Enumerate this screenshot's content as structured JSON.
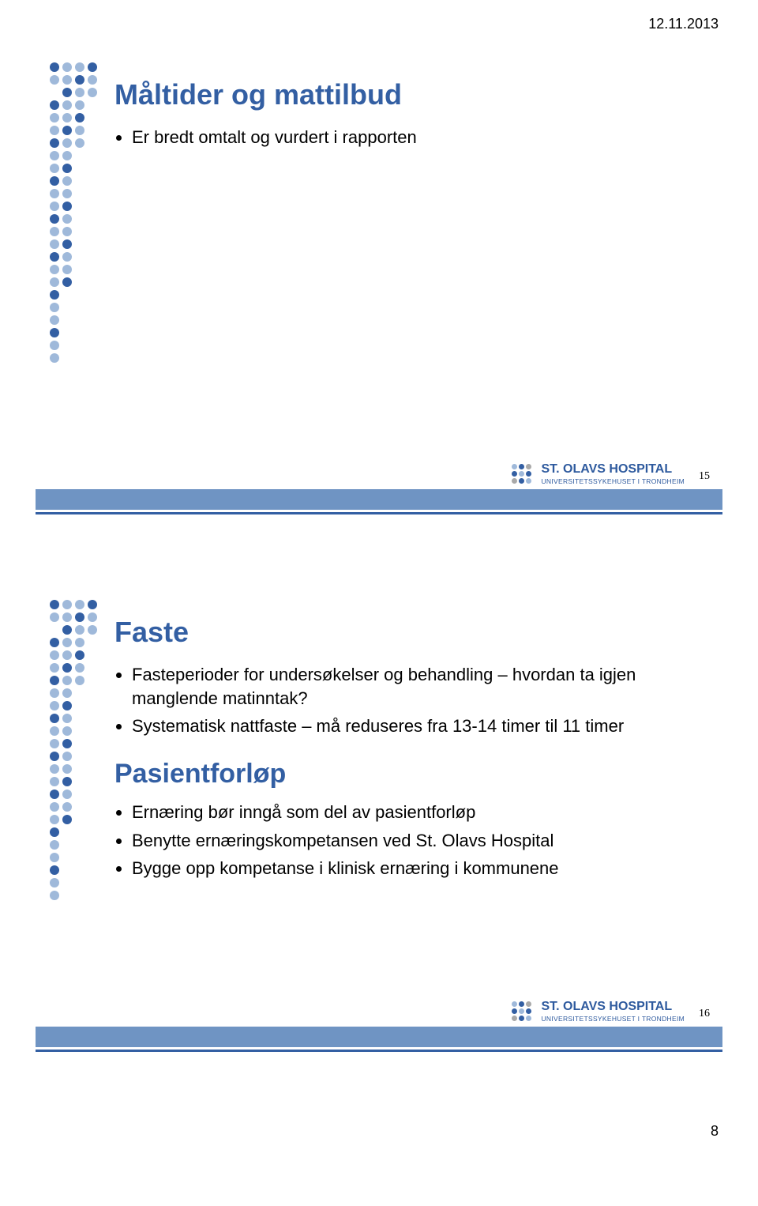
{
  "colors": {
    "accent_blue": "#335fa3",
    "light_blue_dot": "#9fb9da",
    "dark_blue_dot": "#335fa3",
    "grey_dot": "#a9a9a9",
    "footer_bar": "#6f94c3",
    "footer_line": "#335fa3",
    "logo_text": "#2e5a9e"
  },
  "header": {
    "date": "12.11.2013"
  },
  "slide1": {
    "title": "Måltider og mattilbud",
    "bullets": [
      "Er bredt omtalt og vurdert i rapporten"
    ],
    "logo": {
      "line1": "ST. OLAVS HOSPITAL",
      "line2": "UNIVERSITETSSYKEHUSET I TRONDHEIM"
    },
    "number": "15"
  },
  "slide2": {
    "title": "Faste",
    "bullets_a": [
      "Fasteperioder for undersøkelser og behandling – hvordan ta igjen manglende matinntak?",
      "Systematisk nattfaste – må reduseres fra 13-14 timer til 11 timer"
    ],
    "subheading": "Pasientforløp",
    "bullets_b": [
      "Ernæring bør inngå som del av pasientforløp",
      "Benytte ernæringskompetansen ved St. Olavs Hospital",
      "Bygge opp kompetanse i klinisk ernæring i kommunene"
    ],
    "logo": {
      "line1": "ST. OLAVS HOSPITAL",
      "line2": "UNIVERSITETSSYKEHUSET I TRONDHEIM"
    },
    "number": "16"
  },
  "footer": {
    "page_number": "8"
  },
  "dot_pattern": {
    "rows": 24,
    "cols": 4,
    "mask": [
      [
        1,
        1,
        1,
        1
      ],
      [
        1,
        1,
        1,
        1
      ],
      [
        0,
        1,
        1,
        1
      ],
      [
        1,
        1,
        1,
        0
      ],
      [
        1,
        1,
        1,
        0
      ],
      [
        1,
        1,
        1,
        0
      ],
      [
        1,
        1,
        1,
        0
      ],
      [
        1,
        1,
        0,
        0
      ],
      [
        1,
        1,
        0,
        0
      ],
      [
        1,
        1,
        0,
        0
      ],
      [
        1,
        1,
        0,
        0
      ],
      [
        1,
        1,
        0,
        0
      ],
      [
        1,
        1,
        0,
        0
      ],
      [
        1,
        1,
        0,
        0
      ],
      [
        1,
        1,
        0,
        0
      ],
      [
        1,
        1,
        0,
        0
      ],
      [
        1,
        1,
        0,
        0
      ],
      [
        1,
        1,
        0,
        0
      ],
      [
        1,
        0,
        0,
        0
      ],
      [
        1,
        0,
        0,
        0
      ],
      [
        1,
        0,
        0,
        0
      ],
      [
        1,
        0,
        0,
        0
      ],
      [
        1,
        0,
        0,
        0
      ],
      [
        1,
        0,
        0,
        0
      ]
    ]
  },
  "logo_dots": {
    "pattern": [
      [
        "l",
        "d",
        "g"
      ],
      [
        "d",
        "l",
        "d"
      ],
      [
        "g",
        "d",
        "l"
      ]
    ]
  }
}
